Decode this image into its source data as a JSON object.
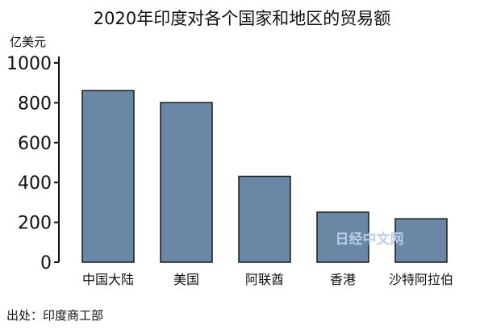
{
  "chart_data": {
    "type": "bar",
    "title": "2020年印度对各个国家和地区的贸易额",
    "ylabel": "亿美元",
    "xlabel": "",
    "categories": [
      "中国大陆",
      "美国",
      "阿联酋",
      "香港",
      "沙特阿拉伯"
    ],
    "values": [
      861,
      801,
      431,
      251,
      218
    ],
    "ylim": [
      0,
      1000
    ],
    "yticks": [
      0,
      200,
      400,
      600,
      800,
      1000
    ],
    "grid": false,
    "bar_color": "#6b87a6",
    "bar_edge_color": "#1a1a1a"
  },
  "source": "出处：印度商工部",
  "watermark": "日经中文网"
}
